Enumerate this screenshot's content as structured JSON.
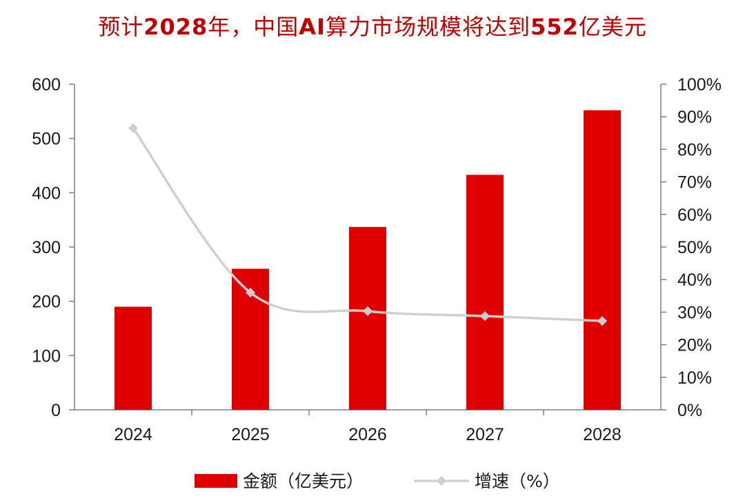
{
  "title": {
    "part1": "预计",
    "part2": "2028",
    "part3": "年，中国",
    "part4": "AI",
    "part5": "算力市场规模将达到",
    "part6": "552",
    "part7": "亿美元"
  },
  "chart_data": {
    "type": "bar",
    "title": "预计2028年，中国AI算力市场规模将达到552亿美元",
    "categories": [
      "2024",
      "2025",
      "2026",
      "2027",
      "2028"
    ],
    "series": [
      {
        "name": "金额（亿美元）",
        "type": "bar",
        "axis": "left",
        "values": [
          190,
          260,
          337,
          433,
          552
        ],
        "color": "#e00000"
      },
      {
        "name": "增速（%）",
        "type": "line",
        "axis": "right",
        "values": [
          86.5,
          36,
          30.3,
          28.8,
          27.3
        ],
        "color": "#cfcfcf"
      }
    ],
    "y_left": {
      "min": 0,
      "max": 600,
      "step": 100,
      "ticks": [
        "0",
        "100",
        "200",
        "300",
        "400",
        "500",
        "600"
      ]
    },
    "y_right": {
      "min": 0,
      "max": 100,
      "step": 10,
      "ticks": [
        "0%",
        "10%",
        "20%",
        "30%",
        "40%",
        "50%",
        "60%",
        "70%",
        "80%",
        "90%",
        "100%"
      ]
    },
    "legend_position": "bottom",
    "grid": false
  }
}
